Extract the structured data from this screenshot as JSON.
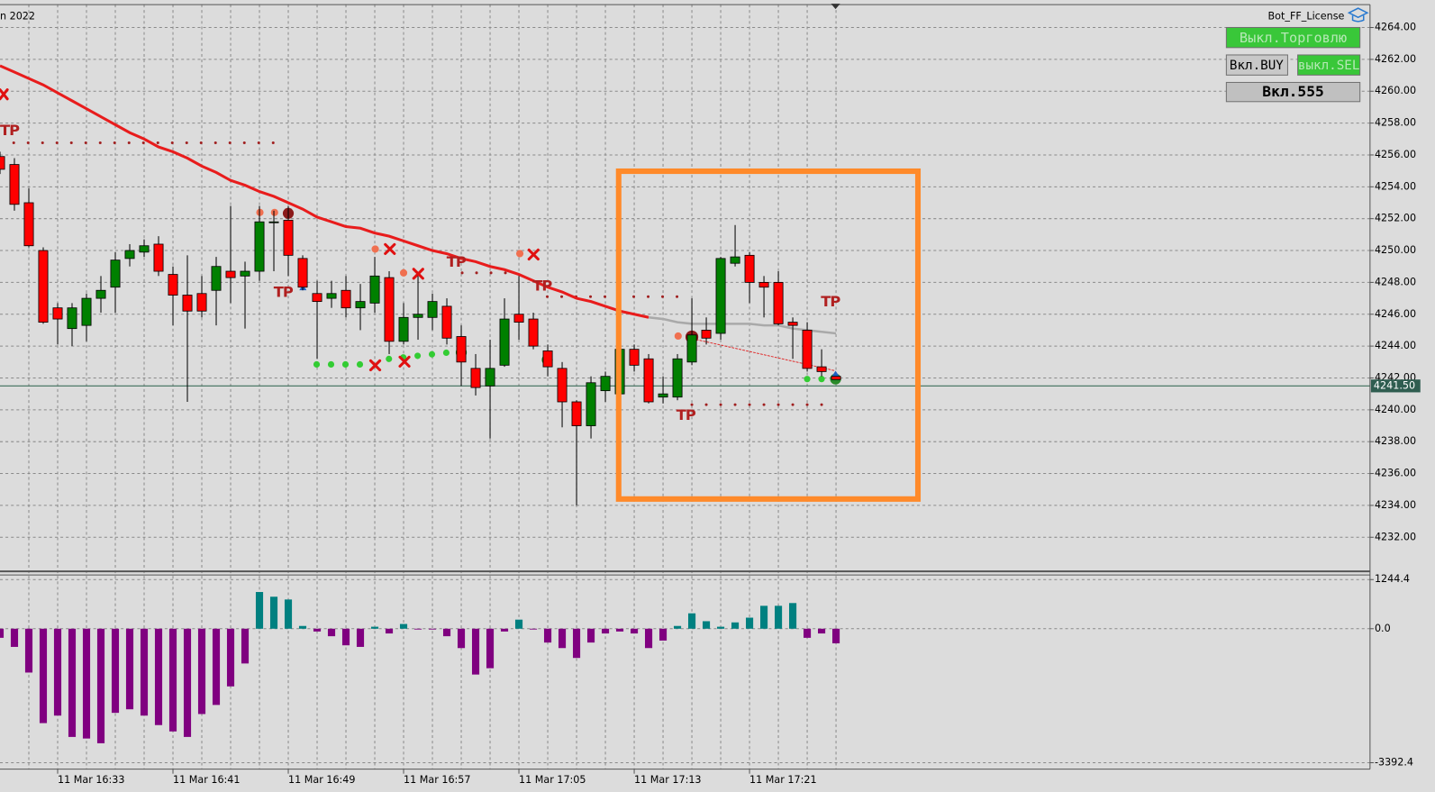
{
  "chart_data": [
    {
      "type": "candlestick",
      "title": "n 2022",
      "categories": [
        null,
        null,
        null,
        null,
        "11 Mar 16:33",
        null,
        null,
        null,
        null,
        null,
        null,
        null,
        "11 Mar 16:41",
        null,
        null,
        null,
        null,
        null,
        null,
        null,
        "11 Mar 16:49",
        null,
        null,
        null,
        null,
        null,
        null,
        null,
        "11 Mar 16:57",
        null,
        null,
        null,
        null,
        null,
        null,
        null,
        "11 Mar 17:05",
        null,
        null,
        null,
        null,
        null,
        null,
        null,
        "11 Mar 17:13",
        null,
        null,
        null,
        null,
        null,
        null,
        null,
        "11 Mar 17:21",
        null,
        null,
        null,
        null,
        null,
        null
      ],
      "open": [
        4255.9,
        4255.4,
        4253.0,
        4250.0,
        4246.4,
        4245.1,
        4245.3,
        4247.0,
        4247.7,
        4249.5,
        4249.9,
        4250.4,
        4248.5,
        4247.2,
        4247.3,
        4247.5,
        4248.7,
        4248.4,
        4248.7,
        4251.8,
        4251.9,
        4249.5,
        4247.3,
        4247.0,
        4247.5,
        4246.4,
        4246.7,
        4248.3,
        4244.3,
        4245.8,
        4245.8,
        4246.5,
        4244.6,
        4242.6,
        4241.5,
        4242.8,
        4246.0,
        4245.7,
        4243.7,
        4242.6,
        4240.5,
        4239.0,
        4241.2,
        4241.0,
        4243.8,
        4243.2,
        4240.8,
        4240.8,
        4243.0,
        4245.0,
        4244.8,
        4249.2,
        4249.7,
        4248.0,
        4248.0,
        4245.5,
        4245.0,
        4242.7,
        4242.1
      ],
      "high": [
        4256.2,
        4255.8,
        4253.9,
        4250.2,
        4246.7,
        4246.7,
        4247.3,
        4248.4,
        4249.9,
        4250.4,
        4250.7,
        4250.9,
        4249.0,
        4249.7,
        4248.4,
        4249.6,
        4252.8,
        4249.3,
        4252.8,
        4252.5,
        4252.8,
        4249.7,
        4248.1,
        4248.1,
        4248.4,
        4247.9,
        4249.6,
        4248.7,
        4246.7,
        4248.4,
        4247.3,
        4247.0,
        4245.3,
        4243.5,
        4244.4,
        4247.0,
        4248.4,
        4246.1,
        4244.1,
        4243.0,
        4240.6,
        4242.1,
        4242.4,
        4245.0,
        4244.1,
        4243.5,
        4242.1,
        4243.5,
        4247.0,
        4245.8,
        4249.6,
        4251.6,
        4249.9,
        4248.4,
        4248.7,
        4245.8,
        4245.5,
        4243.8,
        4242.1
      ],
      "low": [
        4254.8,
        4252.5,
        4250.2,
        4245.4,
        4244.1,
        4244.0,
        4244.3,
        4246.1,
        4246.1,
        4249.0,
        4249.6,
        4248.4,
        4245.3,
        4240.5,
        4245.8,
        4245.3,
        4246.7,
        4245.1,
        4248.1,
        4248.7,
        4248.4,
        4247.5,
        4243.2,
        4246.4,
        4245.8,
        4245.0,
        4246.1,
        4243.5,
        4244.1,
        4244.4,
        4245.0,
        4244.1,
        4241.5,
        4240.9,
        4238.2,
        4242.7,
        4244.4,
        4243.8,
        4242.1,
        4238.9,
        4234.0,
        4238.2,
        4240.5,
        4240.9,
        4242.4,
        4240.4,
        4240.4,
        4240.6,
        4242.8,
        4244.1,
        4244.4,
        4249.0,
        4246.7,
        4245.8,
        4245.3,
        4243.2,
        4242.4,
        4242.1,
        4241.9
      ],
      "close": [
        4255.1,
        4252.9,
        4250.3,
        4245.5,
        4245.7,
        4246.4,
        4247.0,
        4247.5,
        4249.4,
        4250.0,
        4250.3,
        4248.7,
        4247.2,
        4246.2,
        4246.2,
        4249.0,
        4248.3,
        4248.7,
        4251.8,
        4251.8,
        4249.7,
        4247.7,
        4246.8,
        4247.3,
        4246.4,
        4246.8,
        4248.4,
        4244.3,
        4245.8,
        4246.0,
        4246.8,
        4244.5,
        4243.0,
        4241.4,
        4242.6,
        4245.7,
        4245.5,
        4244.0,
        4242.7,
        4240.5,
        4239.0,
        4241.7,
        4242.1,
        4243.8,
        4242.8,
        4240.5,
        4241.0,
        4243.2,
        4244.7,
        4244.5,
        4249.5,
        4249.6,
        4248.0,
        4247.7,
        4245.4,
        4245.3,
        4242.6,
        4242.4,
        4241.9
      ],
      "up_color": "#008000",
      "down_color": "#ff0000",
      "lines": [
        {
          "color": "#e81c1c",
          "values": [
            4261.6,
            4261.2,
            4260.8,
            4260.4,
            4259.9,
            4259.4,
            4258.9,
            4258.4,
            4257.9,
            4257.4,
            4257.0,
            4256.5,
            4256.2,
            4255.8,
            4255.3,
            4254.9,
            4254.4,
            4254.1,
            4253.7,
            4253.4,
            4253.0,
            4252.6,
            4252.1,
            4251.8,
            4251.5,
            4251.4,
            4251.1,
            4250.9,
            4250.6,
            4250.3,
            4250.0,
            4249.8,
            4249.5,
            4249.3,
            4249.0,
            4248.8,
            4248.5,
            4248.1,
            4247.7,
            4247.4,
            4247.0,
            4246.8,
            4246.5,
            4246.2,
            4246.0,
            4245.8,
            null,
            null,
            null,
            null,
            null,
            null,
            null,
            null,
            null,
            null,
            null,
            null,
            null
          ]
        },
        {
          "color": "#a9a9a9",
          "values": [
            null,
            null,
            null,
            null,
            null,
            null,
            null,
            null,
            null,
            null,
            null,
            null,
            null,
            null,
            null,
            null,
            null,
            null,
            null,
            null,
            null,
            null,
            null,
            null,
            null,
            null,
            null,
            null,
            null,
            null,
            null,
            null,
            null,
            null,
            null,
            null,
            null,
            null,
            null,
            null,
            null,
            null,
            null,
            null,
            null,
            4245.8,
            4245.7,
            4245.5,
            4245.4,
            4245.4,
            4245.4,
            4245.4,
            4245.4,
            4245.3,
            4245.3,
            4245.1,
            4245.0,
            4244.9,
            4244.8
          ]
        }
      ],
      "current_price": {
        "value": 4241.5,
        "label": "4241.50"
      },
      "tp_labels": [
        "TP",
        "TP",
        "TP",
        "TP",
        "TP",
        "TP"
      ],
      "ylim": [
        4229.86,
        4265.44
      ],
      "yticks": [
        {
          "value": 4232,
          "label": "4232.00"
        },
        {
          "value": 4234,
          "label": "4234.00"
        },
        {
          "value": 4236,
          "label": "4236.00"
        },
        {
          "value": 4238,
          "label": "4238.00"
        },
        {
          "value": 4240,
          "label": "4240.00"
        },
        {
          "value": 4242,
          "label": "4242.00"
        },
        {
          "value": 4244,
          "label": "4244.00"
        },
        {
          "value": 4246,
          "label": "4246.00"
        },
        {
          "value": 4248,
          "label": "4248.00"
        },
        {
          "value": 4250,
          "label": "4250.00"
        },
        {
          "value": 4252,
          "label": "4252.00"
        },
        {
          "value": 4254,
          "label": "4254.00"
        },
        {
          "value": 4256,
          "label": "4256.00"
        },
        {
          "value": 4258,
          "label": "4258.00"
        },
        {
          "value": 4260,
          "label": "4260.00"
        },
        {
          "value": 4262,
          "label": "4262.00"
        },
        {
          "value": 4264,
          "label": "4264.00"
        }
      ],
      "grid": true
    },
    {
      "type": "histogram",
      "values": [
        -230,
        -460,
        -1110,
        -2390,
        -2200,
        -2740,
        -2780,
        -2900,
        -2130,
        -2040,
        -2200,
        -2440,
        -2600,
        -2740,
        -2160,
        -1930,
        -1460,
        -880,
        930,
        810,
        740,
        70,
        -70,
        -190,
        -420,
        -460,
        50,
        -120,
        120,
        -20,
        -20,
        -190,
        -490,
        -1160,
        -1000,
        -70,
        230,
        -20,
        -350,
        -490,
        -740,
        -350,
        -120,
        -70,
        -120,
        -490,
        -300,
        70,
        390,
        190,
        50,
        160,
        280,
        580,
        580,
        650,
        -230,
        -120,
        -370
      ],
      "positive_color": "#008080",
      "negative_color": "#800080",
      "ylim": [
        -3554.7,
        1383.5
      ],
      "yticks": [
        1244.4,
        {
          "value": 0,
          "label": "0.0"
        },
        -3392.4
      ],
      "grid": true
    }
  ],
  "panel": {
    "title": "Bot_FF_License",
    "buttons": [
      "Выкл.Торговлю",
      "Вкл.BUY",
      "выкл.SEL",
      "Вкл.555"
    ]
  }
}
